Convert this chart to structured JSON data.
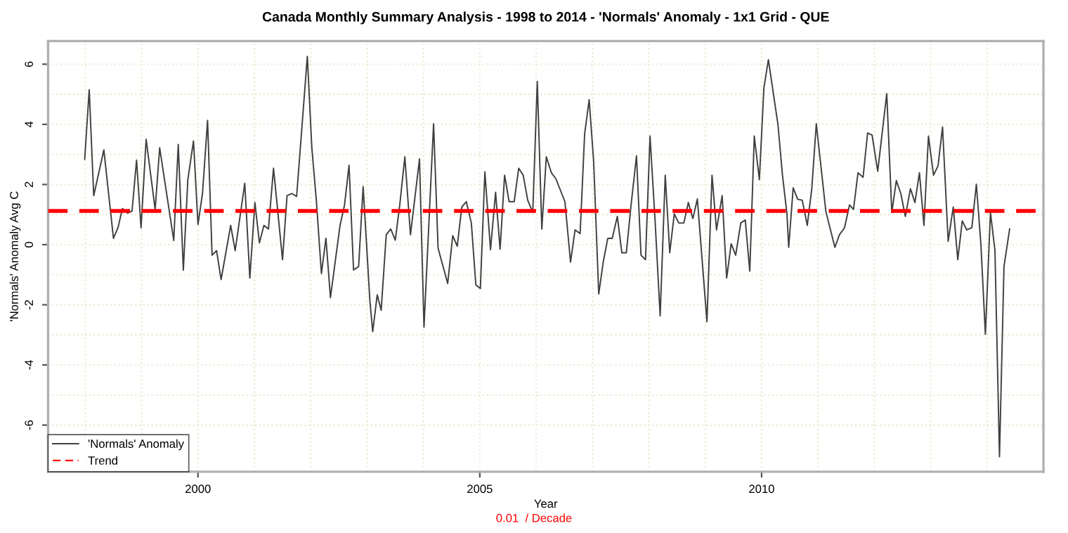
{
  "chart_data": {
    "type": "line",
    "title": "Canada Monthly Summary Analysis - 1998 to 2014 - 'Normals' Anomaly - 1x1 Grid - QUE",
    "xlabel": "Year",
    "ylabel": "'Normals' Anomaly Avg C",
    "annotations": [
      "0.01  / Decade"
    ],
    "xlim": [
      1997.34,
      2015.0
    ],
    "ylim": [
      -7.55,
      6.77
    ],
    "xticks": [
      {
        "value": 1998,
        "label": null
      },
      {
        "value": 1999,
        "label": null
      },
      2000,
      {
        "value": 2001,
        "label": null
      },
      {
        "value": 2002,
        "label": null
      },
      {
        "value": 2003,
        "label": null
      },
      {
        "value": 2004,
        "label": null
      },
      2005,
      {
        "value": 2006,
        "label": null
      },
      {
        "value": 2007,
        "label": null
      },
      {
        "value": 2008,
        "label": null
      },
      {
        "value": 2009,
        "label": null
      },
      2010,
      {
        "value": 2011,
        "label": null
      },
      {
        "value": 2012,
        "label": null
      },
      {
        "value": 2013,
        "label": null
      },
      {
        "value": 2014,
        "label": null
      }
    ],
    "yticks": [
      -6,
      {
        "value": -5,
        "label": null
      },
      -4,
      {
        "value": -3,
        "label": null
      },
      -2,
      {
        "value": -1,
        "label": null
      },
      0,
      {
        "value": 1,
        "label": null
      },
      2,
      {
        "value": 3,
        "label": null
      },
      4,
      {
        "value": 5,
        "label": null
      },
      6
    ],
    "grid": true,
    "legend": "bottom left",
    "series": [
      {
        "name": "'Normals' Anomaly",
        "color": "#404040",
        "line_style": "solid",
        "x": [
          1997.99,
          1998.07,
          1998.15,
          1998.33,
          1998.5,
          1998.58,
          1998.66,
          1998.75,
          1998.83,
          1998.91,
          1998.99,
          1999.08,
          1999.24,
          1999.32,
          1999.57,
          1999.65,
          1999.74,
          1999.82,
          1999.92,
          2000.0,
          2000.08,
          2000.17,
          2000.25,
          2000.33,
          2000.41,
          2000.58,
          2000.66,
          2000.83,
          2000.92,
          2001.01,
          2001.09,
          2001.17,
          2001.25,
          2001.34,
          2001.5,
          2001.58,
          2001.67,
          2001.75,
          2001.94,
          2002.02,
          2002.1,
          2002.19,
          2002.27,
          2002.35,
          2002.52,
          2002.6,
          2002.68,
          2002.76,
          2002.85,
          2002.93,
          2003.05,
          2003.1,
          2003.18,
          2003.25,
          2003.34,
          2003.42,
          2003.5,
          2003.58,
          2003.67,
          2003.77,
          2003.93,
          2004.01,
          2004.18,
          2004.26,
          2004.43,
          2004.52,
          2004.6,
          2004.68,
          2004.76,
          2004.85,
          2004.93,
          2005.01,
          2005.09,
          2005.19,
          2005.28,
          2005.36,
          2005.44,
          2005.52,
          2005.61,
          2005.69,
          2005.77,
          2005.85,
          2005.94,
          2006.02,
          2006.1,
          2006.18,
          2006.27,
          2006.35,
          2006.51,
          2006.61,
          2006.69,
          2006.78,
          2006.86,
          2006.94,
          2007.02,
          2007.11,
          2007.19,
          2007.27,
          2007.35,
          2007.44,
          2007.52,
          2007.6,
          2007.68,
          2007.78,
          2007.86,
          2007.94,
          2008.02,
          2008.11,
          2008.2,
          2008.29,
          2008.37,
          2008.45,
          2008.53,
          2008.62,
          2008.7,
          2008.78,
          2008.86,
          2009.03,
          2009.12,
          2009.2,
          2009.3,
          2009.38,
          2009.46,
          2009.54,
          2009.63,
          2009.71,
          2009.79,
          2009.87,
          2009.96,
          2010.04,
          2010.12,
          2010.29,
          2010.37,
          2010.45,
          2010.48,
          2010.56,
          2010.64,
          2010.72,
          2010.81,
          2010.89,
          2010.97,
          2011.14,
          2011.3,
          2011.38,
          2011.47,
          2011.56,
          2011.63,
          2011.71,
          2011.8,
          2011.88,
          2011.96,
          2012.06,
          2012.22,
          2012.31,
          2012.39,
          2012.47,
          2012.55,
          2012.64,
          2012.72,
          2012.8,
          2012.88,
          2012.96,
          2013.05,
          2013.13,
          2013.21,
          2013.31,
          2013.4,
          2013.48,
          2013.56,
          2013.64,
          2013.73,
          2013.81,
          2013.89,
          2013.97,
          2014.06,
          2014.14,
          2014.22,
          2014.3,
          2014.4
        ],
        "values": [
          2.84,
          5.15,
          1.63,
          3.15,
          0.21,
          0.56,
          1.2,
          1.05,
          1.12,
          2.81,
          0.56,
          3.5,
          1.17,
          3.22,
          0.14,
          3.33,
          -0.85,
          2.16,
          3.45,
          0.67,
          1.7,
          4.13,
          -0.35,
          -0.2,
          -1.16,
          0.64,
          -0.2,
          2.04,
          -1.11,
          1.4,
          0.06,
          0.64,
          0.52,
          2.54,
          -0.5,
          1.63,
          1.7,
          1.6,
          6.26,
          3.22,
          1.47,
          -0.96,
          0.21,
          -1.76,
          0.64,
          1.32,
          2.64,
          -0.84,
          -0.73,
          1.93,
          -1.87,
          -2.89,
          -1.67,
          -2.18,
          0.33,
          0.52,
          0.15,
          1.32,
          2.92,
          0.33,
          2.85,
          -2.74,
          4.02,
          -0.12,
          -1.29,
          0.3,
          -0.05,
          1.25,
          1.43,
          0.72,
          -1.34,
          -1.46,
          2.42,
          -0.17,
          1.74,
          -0.15,
          2.31,
          1.43,
          1.43,
          2.54,
          2.31,
          1.48,
          1.07,
          5.43,
          0.52,
          2.92,
          2.39,
          2.19,
          1.43,
          -0.58,
          0.49,
          0.37,
          3.68,
          4.82,
          2.77,
          -1.64,
          -0.58,
          0.21,
          0.21,
          0.94,
          -0.27,
          -0.27,
          1.25,
          2.95,
          -0.35,
          -0.5,
          3.61,
          0.79,
          -2.37,
          2.31,
          -0.27,
          1.02,
          0.72,
          0.72,
          1.4,
          0.87,
          1.52,
          -2.56,
          2.31,
          0.49,
          1.63,
          -1.11,
          0.03,
          -0.35,
          0.72,
          0.82,
          -0.88,
          3.61,
          2.16,
          5.21,
          6.15,
          3.99,
          2.31,
          1.02,
          -0.09,
          1.89,
          1.51,
          1.48,
          0.64,
          1.86,
          4.02,
          1.1,
          -0.09,
          0.33,
          0.56,
          1.32,
          1.17,
          2.39,
          2.24,
          3.71,
          3.64,
          2.44,
          5.02,
          1.07,
          2.13,
          1.7,
          0.94,
          1.86,
          1.4,
          2.39,
          0.64,
          3.61,
          2.31,
          2.62,
          3.91,
          0.11,
          1.25,
          -0.5,
          0.79,
          0.49,
          0.56,
          2.01,
          0.03,
          -2.98,
          1.07,
          -0.2,
          -7.05,
          -0.73,
          0.52
        ]
      },
      {
        "name": "Trend",
        "color": "#ff0000",
        "line_style": "dashed",
        "x": [
          1997.34,
          2015.0
        ],
        "values": [
          1.12,
          1.12
        ]
      }
    ]
  }
}
